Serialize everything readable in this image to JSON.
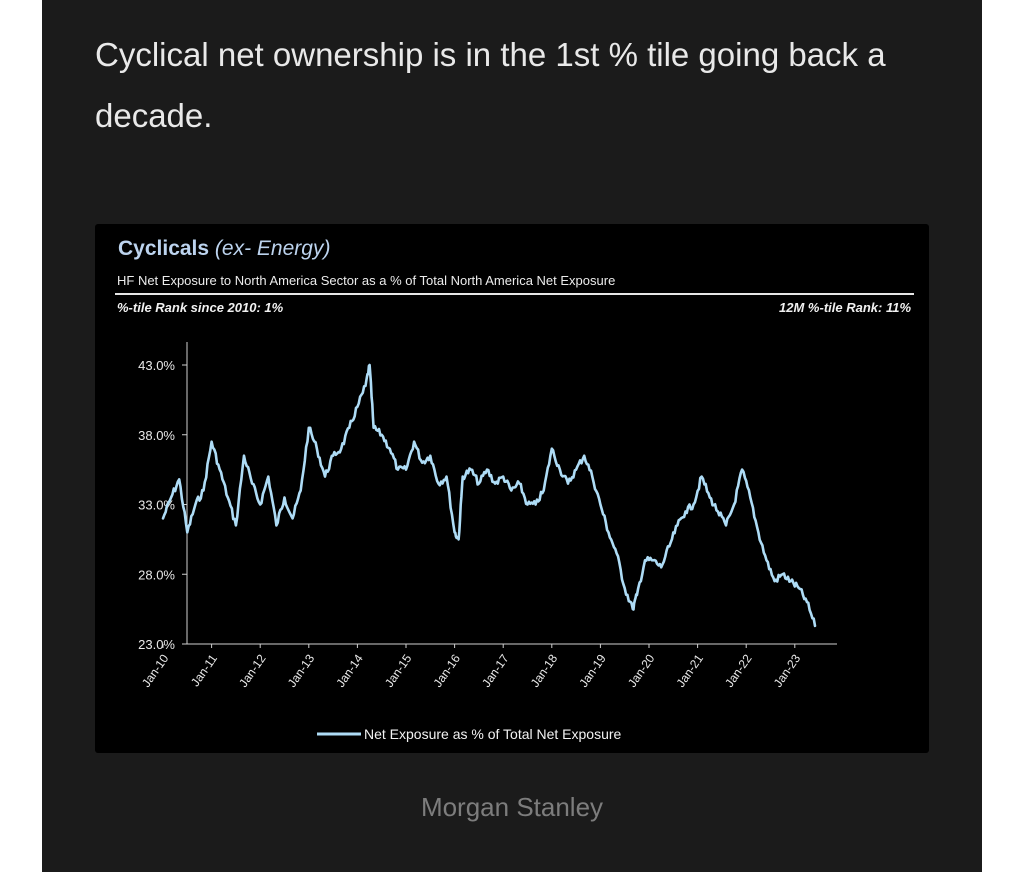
{
  "post": {
    "text": "Cyclical net ownership is in the 1st % tile going back a decade.",
    "source_caption": "Morgan Stanley"
  },
  "chart_header": {
    "title_main": "Cyclicals",
    "title_paren": "(ex- Energy)",
    "subtitle": "HF Net Exposure to North America Sector as a % of Total North America Net Exposure",
    "rank_left": "%-tile Rank since 2010: 1%",
    "rank_right": "12M %-tile Rank: 11%"
  },
  "colors": {
    "line": "#aedcf6",
    "panel": "#1b1b1b",
    "chart_bg": "#000000",
    "title": "#bcd3ee"
  },
  "chart_data": {
    "type": "line",
    "title": "Cyclicals (ex- Energy)",
    "subtitle": "HF Net Exposure to North America Sector as a % of Total North America Net Exposure",
    "ylim": [
      23,
      43
    ],
    "y_ticks": [
      23,
      28,
      33,
      38,
      43
    ],
    "y_tick_labels": [
      "23.0%",
      "28.0%",
      "33.0%",
      "38.0%",
      "43.0%"
    ],
    "x_ticks": [
      "Jan-10",
      "Jan-11",
      "Jan-12",
      "Jan-13",
      "Jan-14",
      "Jan-15",
      "Jan-16",
      "Jan-17",
      "Jan-18",
      "Jan-19",
      "Jan-20",
      "Jan-21",
      "Jan-22",
      "Jan-23"
    ],
    "grid": false,
    "legend": "bottom-center",
    "series": [
      {
        "name": "Net Exposure as % of Total Net Exposure",
        "x": [
          "Jan-10",
          "Mar-10",
          "May-10",
          "Jul-10",
          "Sep-10",
          "Nov-10",
          "Jan-11",
          "Mar-11",
          "May-11",
          "Jul-11",
          "Sep-11",
          "Nov-11",
          "Jan-12",
          "Mar-12",
          "May-12",
          "Jul-12",
          "Sep-12",
          "Nov-12",
          "Jan-13",
          "Mar-13",
          "May-13",
          "Jul-13",
          "Sep-13",
          "Nov-13",
          "Jan-14",
          "Mar-14",
          "Apr-14",
          "May-14",
          "Jul-14",
          "Sep-14",
          "Nov-14",
          "Jan-15",
          "Mar-15",
          "May-15",
          "Jul-15",
          "Sep-15",
          "Nov-15",
          "Jan-16",
          "Feb-16",
          "Mar-16",
          "May-16",
          "Jul-16",
          "Sep-16",
          "Nov-16",
          "Jan-17",
          "Mar-17",
          "May-17",
          "Jul-17",
          "Sep-17",
          "Nov-17",
          "Jan-18",
          "Mar-18",
          "May-18",
          "Jul-18",
          "Sep-18",
          "Nov-18",
          "Jan-19",
          "Mar-19",
          "May-19",
          "Jul-19",
          "Sep-19",
          "Oct-19",
          "Dec-19",
          "Feb-20",
          "Apr-20",
          "Jun-20",
          "Aug-20",
          "Oct-20",
          "Dec-20",
          "Feb-21",
          "Apr-21",
          "Jun-21",
          "Aug-21",
          "Oct-21",
          "Dec-21",
          "Feb-22",
          "Apr-22",
          "Jun-22",
          "Aug-22",
          "Oct-22",
          "Dec-22",
          "Feb-23",
          "Apr-23",
          "Jun-23"
        ],
        "values": [
          32.0,
          33.5,
          34.8,
          31.0,
          33.0,
          34.0,
          37.5,
          35.5,
          33.5,
          31.5,
          36.5,
          34.5,
          33.0,
          35.0,
          31.5,
          33.5,
          32.0,
          34.0,
          38.5,
          37.0,
          35.0,
          36.5,
          37.0,
          38.5,
          40.0,
          41.5,
          43.0,
          38.5,
          38.0,
          37.0,
          35.5,
          35.5,
          37.5,
          36.0,
          36.5,
          34.5,
          35.0,
          31.0,
          30.5,
          35.0,
          35.5,
          34.5,
          35.5,
          34.5,
          35.0,
          34.0,
          34.5,
          33.0,
          33.0,
          34.0,
          37.0,
          35.5,
          34.5,
          35.5,
          36.5,
          35.0,
          33.0,
          31.0,
          29.5,
          27.0,
          25.5,
          26.5,
          29.0,
          29.0,
          28.5,
          30.0,
          31.5,
          32.5,
          33.0,
          35.0,
          33.5,
          32.5,
          31.5,
          33.0,
          35.5,
          33.5,
          31.0,
          29.0,
          27.5,
          28.0,
          27.5,
          27.0,
          26.0,
          24.3
        ]
      }
    ]
  }
}
